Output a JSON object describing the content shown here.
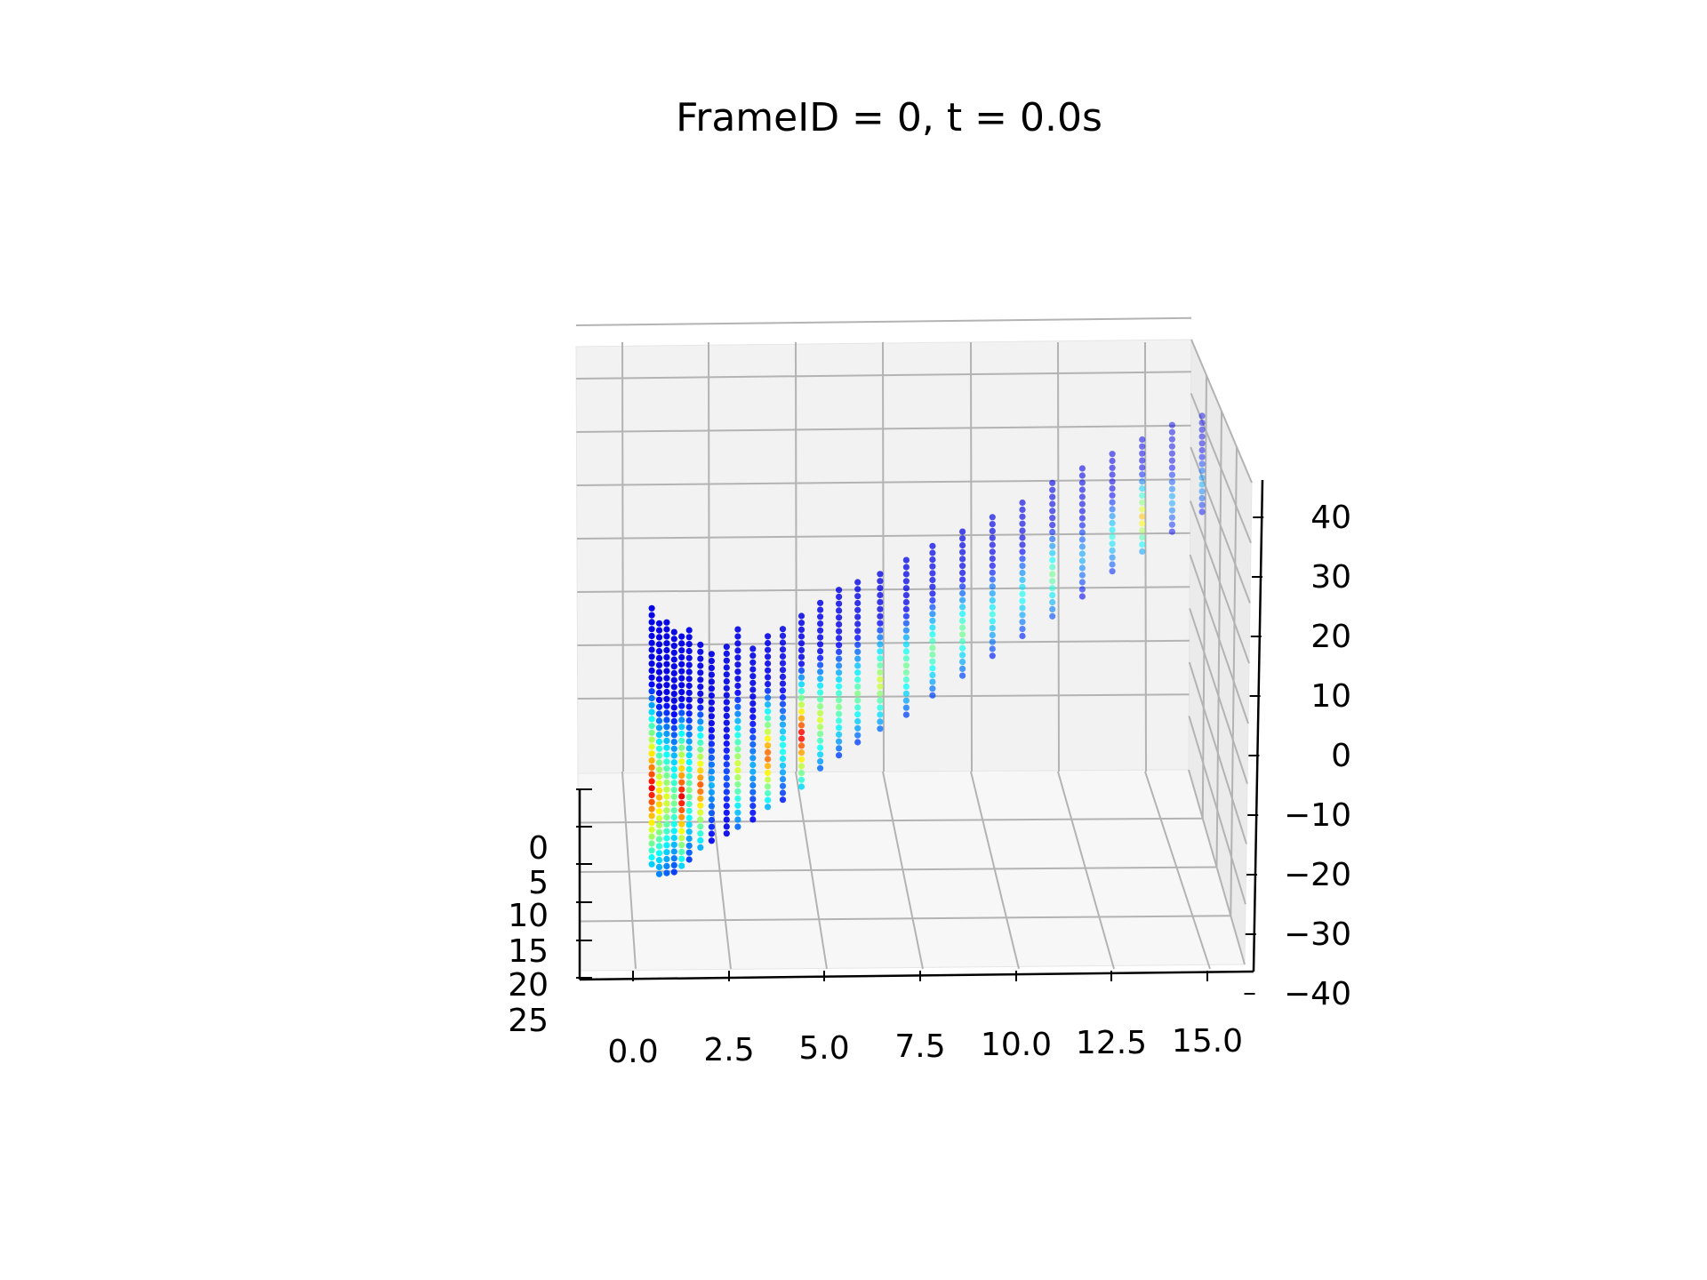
{
  "chart_data": {
    "type": "scatter",
    "title": "FrameID = 0, t = 0.0s",
    "projection": "3d",
    "colormap": "jet",
    "grid": true,
    "x_ticks": [
      "0.0",
      "2.5",
      "5.0",
      "7.5",
      "10.0",
      "12.5",
      "15.0"
    ],
    "y_ticks": [
      "0",
      "5",
      "10",
      "15",
      "20",
      "25"
    ],
    "z_ticks": [
      "40",
      "30",
      "20",
      "10",
      "0",
      "−10",
      "−20",
      "−30",
      "−40"
    ],
    "xlim": [
      -1.2,
      16.6
    ],
    "ylim": [
      0,
      25
    ],
    "zlim": [
      -40,
      40
    ],
    "columns": [
      {
        "x": 0.5,
        "z": [
          -30,
          18
        ],
        "cmax": 0.9
      },
      {
        "x": 0.7,
        "z": [
          -32,
          15
        ],
        "cmax": 0.7
      },
      {
        "x": 0.9,
        "z": [
          -32,
          15
        ],
        "cmax": 0.6
      },
      {
        "x": 1.1,
        "z": [
          -32,
          13
        ],
        "cmax": 0.5
      },
      {
        "x": 1.3,
        "z": [
          -31,
          12
        ],
        "cmax": 0.9
      },
      {
        "x": 1.5,
        "z": [
          -30,
          13
        ],
        "cmax": 0.5
      },
      {
        "x": 1.8,
        "z": [
          -28,
          10
        ],
        "cmax": 0.8
      },
      {
        "x": 2.1,
        "z": [
          -27,
          8
        ],
        "cmax": 0.3
      },
      {
        "x": 2.5,
        "z": [
          -26,
          9
        ],
        "cmax": 0.2
      },
      {
        "x": 2.8,
        "z": [
          -25,
          12
        ],
        "cmax": 0.6
      },
      {
        "x": 3.2,
        "z": [
          -24,
          8
        ],
        "cmax": 0.3
      },
      {
        "x": 3.6,
        "z": [
          -22,
          10
        ],
        "cmax": 0.8
      },
      {
        "x": 4.0,
        "z": [
          -21,
          11
        ],
        "cmax": 0.4
      },
      {
        "x": 4.5,
        "z": [
          -19,
          13
        ],
        "cmax": 0.9
      },
      {
        "x": 5.0,
        "z": [
          -16,
          15
        ],
        "cmax": 0.6
      },
      {
        "x": 5.5,
        "z": [
          -14,
          17
        ],
        "cmax": 0.5
      },
      {
        "x": 6.0,
        "z": [
          -12,
          18
        ],
        "cmax": 0.5
      },
      {
        "x": 6.6,
        "z": [
          -10,
          19
        ],
        "cmax": 0.6
      },
      {
        "x": 7.3,
        "z": [
          -8,
          21
        ],
        "cmax": 0.5
      },
      {
        "x": 8.0,
        "z": [
          -5,
          23
        ],
        "cmax": 0.5
      },
      {
        "x": 8.8,
        "z": [
          -2,
          25
        ],
        "cmax": 0.5
      },
      {
        "x": 9.6,
        "z": [
          1,
          27
        ],
        "cmax": 0.4
      },
      {
        "x": 10.4,
        "z": [
          4,
          29
        ],
        "cmax": 0.4
      },
      {
        "x": 11.2,
        "z": [
          7,
          32
        ],
        "cmax": 0.5
      },
      {
        "x": 12.0,
        "z": [
          10,
          34
        ],
        "cmax": 0.3
      },
      {
        "x": 12.8,
        "z": [
          14,
          36
        ],
        "cmax": 0.4
      },
      {
        "x": 13.6,
        "z": [
          17,
          38
        ],
        "cmax": 0.7
      },
      {
        "x": 14.4,
        "z": [
          20,
          40
        ],
        "cmax": 0.3
      },
      {
        "x": 15.2,
        "z": [
          23,
          41
        ],
        "cmax": 0.3
      }
    ]
  }
}
